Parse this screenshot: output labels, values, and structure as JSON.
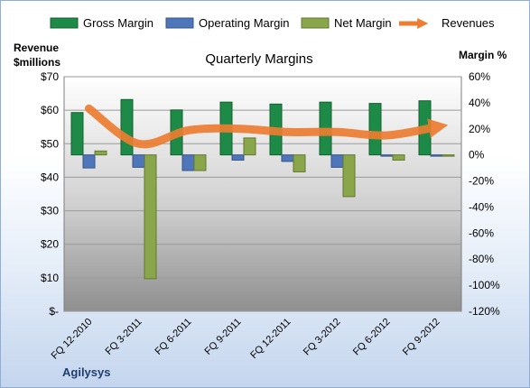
{
  "chart_data": {
    "type": "bar",
    "title": "Quarterly Margins",
    "categories": [
      "FQ 12-2010",
      "FQ 3-2011",
      "FQ 6-2011",
      "FQ 9-2011",
      "FQ 12-2011",
      "FQ 3-2012",
      "FQ 6-2012",
      "FQ 9-2012"
    ],
    "series": [
      {
        "name": "Gross Margin",
        "axis": "right",
        "color": "#1e8a48",
        "values": [
          32.5,
          42.5,
          34.5,
          40.5,
          39.0,
          40.5,
          39.5,
          41.5
        ]
      },
      {
        "name": "Operating Margin",
        "axis": "right",
        "color": "#4f76b9",
        "values": [
          -10.0,
          -9.5,
          -12.0,
          -4.0,
          -5.0,
          -9.5,
          -1.0,
          -1.0
        ]
      },
      {
        "name": "Net Margin",
        "axis": "right",
        "color": "#8aa64b",
        "values": [
          3.0,
          -95.0,
          -12.0,
          13.0,
          -13.0,
          -32.0,
          -4.0,
          -1.0
        ]
      },
      {
        "name": "Revenues",
        "type": "line",
        "axis": "left",
        "color": "#ed7d31",
        "values": [
          60.5,
          50.0,
          54.0,
          54.5,
          53.5,
          53.5,
          52.5,
          55.0
        ]
      }
    ],
    "left_axis": {
      "label_line1": "Revenue",
      "label_line2": "$millions",
      "range": [
        0,
        70
      ],
      "ticks": [
        "$-",
        "$10",
        "$20",
        "$30",
        "$40",
        "$50",
        "$60",
        "$70"
      ]
    },
    "right_axis": {
      "label": "Margin %",
      "range": [
        -120,
        60
      ],
      "ticks": [
        "-120%",
        "-100%",
        "-80%",
        "-60%",
        "-40%",
        "-20%",
        "0%",
        "20%",
        "40%",
        "60%"
      ]
    },
    "legend_position": "top",
    "grid": true
  },
  "footer": {
    "company": "Agilysys"
  }
}
